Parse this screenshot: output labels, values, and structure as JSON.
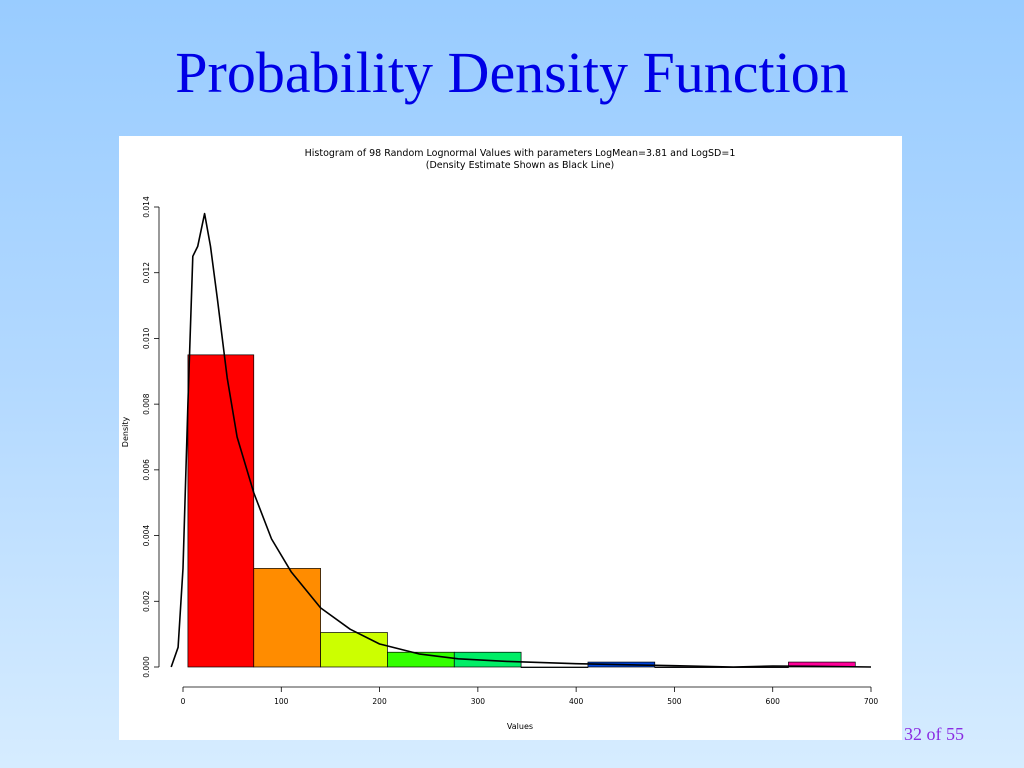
{
  "slide": {
    "title": "Probability Density Function",
    "page_number": "32 of 55"
  },
  "chart_data": {
    "type": "bar",
    "title": "Histogram of 98 Random Lognormal Values with parameters LogMean=3.81 and LogSD=1",
    "subtitle": "(Density Estimate Shown as Black Line)",
    "xlabel": "Values",
    "ylabel": "Density",
    "xlim": [
      0,
      700
    ],
    "ylim": [
      0,
      0.014
    ],
    "x_ticks": [
      "0",
      "100",
      "200",
      "300",
      "400",
      "500",
      "600",
      "700"
    ],
    "y_ticks": [
      "0.000",
      "0.002",
      "0.004",
      "0.006",
      "0.008",
      "0.010",
      "0.012",
      "0.014"
    ],
    "bins": [
      {
        "start": 5,
        "end": 72,
        "density": 0.0095,
        "color": "#ff0000"
      },
      {
        "start": 72,
        "end": 140,
        "density": 0.003,
        "color": "#ff8c00"
      },
      {
        "start": 140,
        "end": 208,
        "density": 0.00105,
        "color": "#ccff00"
      },
      {
        "start": 208,
        "end": 276,
        "density": 0.00045,
        "color": "#33ff00"
      },
      {
        "start": 276,
        "end": 344,
        "density": 0.00045,
        "color": "#00ee66"
      },
      {
        "start": 344,
        "end": 412,
        "density": 0.0,
        "color": "#00ccff"
      },
      {
        "start": 412,
        "end": 480,
        "density": 0.00015,
        "color": "#0044dd"
      },
      {
        "start": 480,
        "end": 548,
        "density": 0.0,
        "color": "#4400ff"
      },
      {
        "start": 548,
        "end": 616,
        "density": 0.0,
        "color": "#aa00ff"
      },
      {
        "start": 616,
        "end": 684,
        "density": 0.00015,
        "color": "#ff0099"
      }
    ],
    "density_line": {
      "color": "#000000",
      "x": [
        -12,
        -5,
        0,
        5,
        10,
        15,
        22,
        28,
        35,
        45,
        55,
        72,
        90,
        110,
        140,
        170,
        200,
        240,
        280,
        330,
        400,
        500,
        560,
        600,
        640,
        700
      ],
      "y": [
        0.0,
        0.0006,
        0.003,
        0.008,
        0.0125,
        0.0128,
        0.0138,
        0.0128,
        0.0112,
        0.0088,
        0.007,
        0.0053,
        0.0039,
        0.0029,
        0.0018,
        0.00115,
        0.0007,
        0.0004,
        0.00025,
        0.00017,
        0.0001,
        4e-05,
        0.0,
        3e-05,
        2e-05,
        0.0
      ]
    }
  }
}
